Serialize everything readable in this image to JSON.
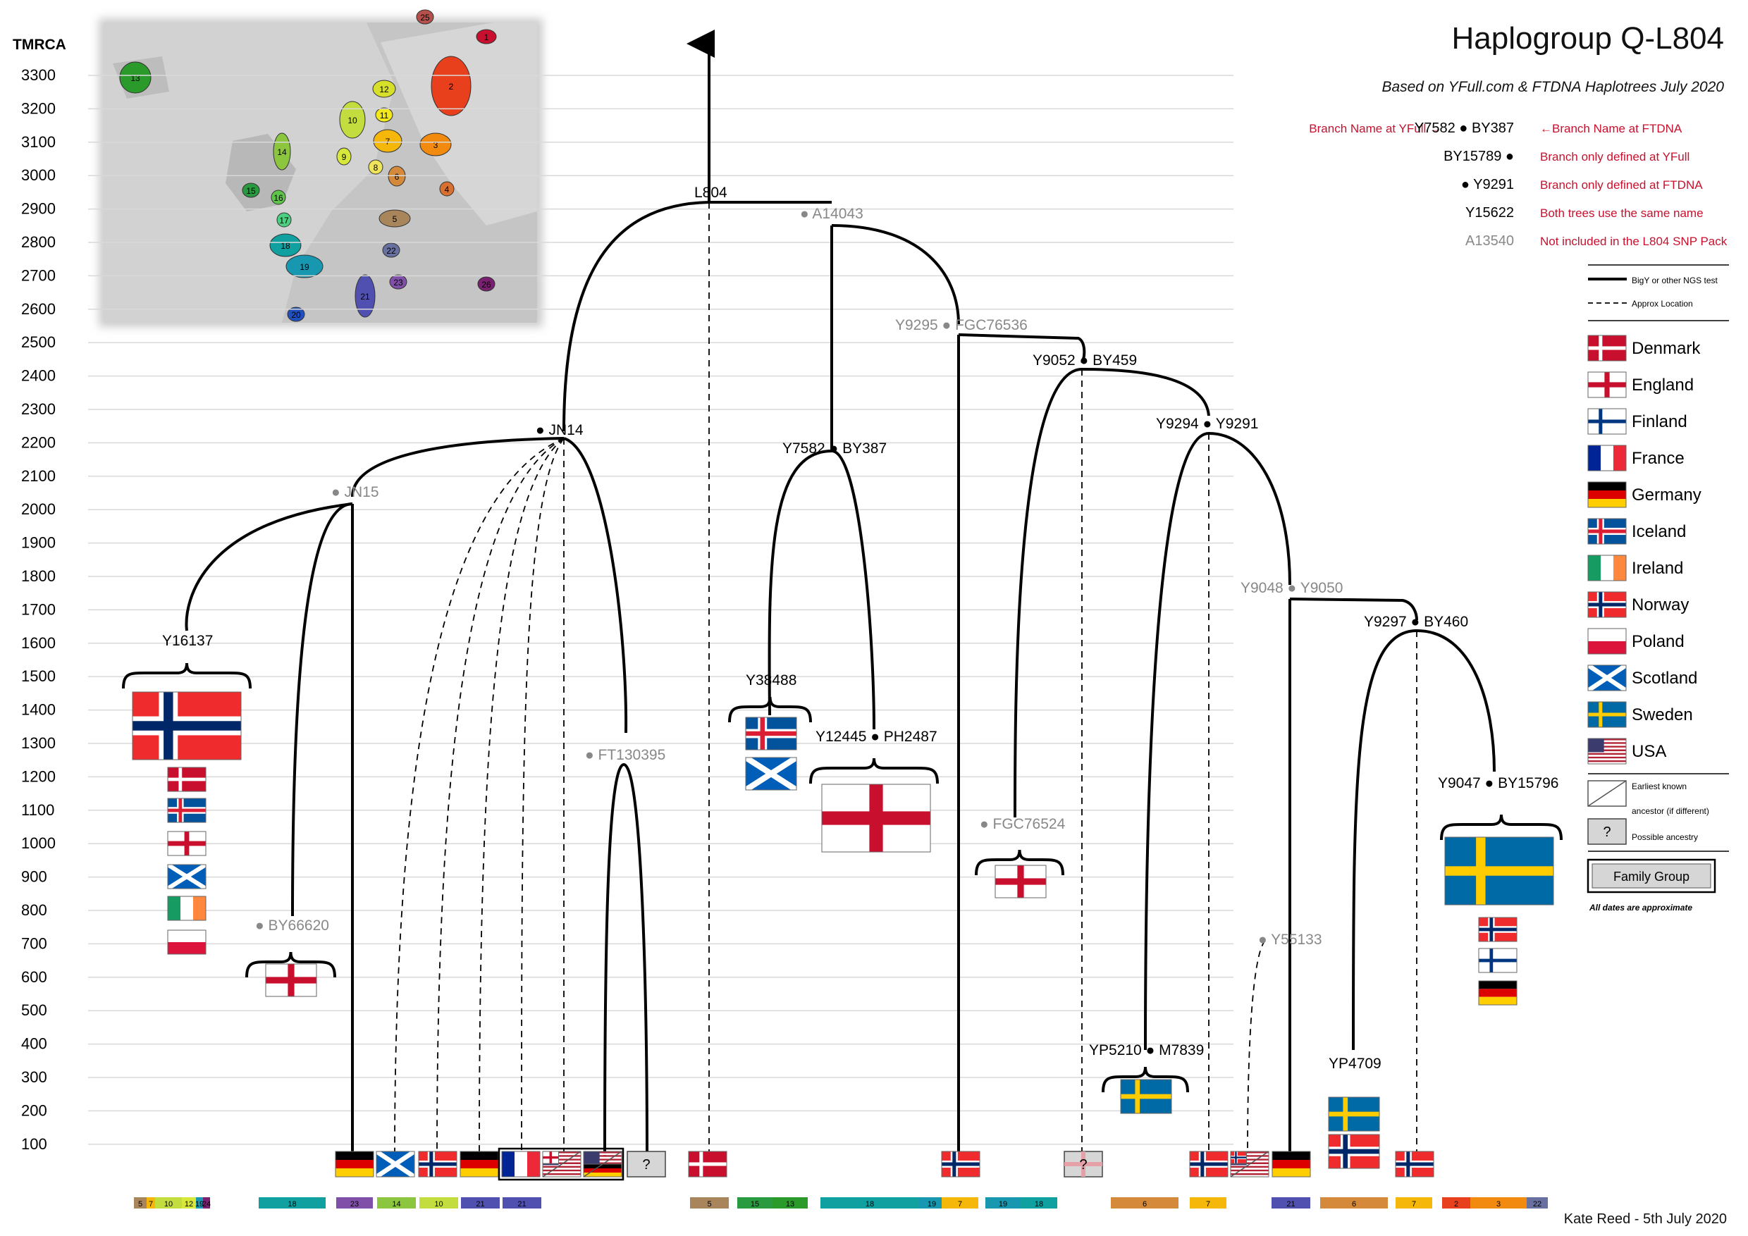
{
  "title": "Haplogroup Q-L804",
  "subtitle": "Based on YFull.com & FTDNA Haplotrees July 2020",
  "credit": "Kate Reed - 5th July 2020",
  "axis": {
    "label": "TMRCA",
    "ticks": [
      "3300",
      "3200",
      "3100",
      "3000",
      "2900",
      "2800",
      "2700",
      "2600",
      "2500",
      "2400",
      "2300",
      "2200",
      "2100",
      "2000",
      "1900",
      "1800",
      "1700",
      "1600",
      "1500",
      "1400",
      "1300",
      "1200",
      "1100",
      "1000",
      "900",
      "800",
      "700",
      "600",
      "500",
      "400",
      "300",
      "200",
      "100"
    ]
  },
  "key": {
    "rows": [
      {
        "left": "Branch Name at YFull →",
        "node": "Y7582 ● BY387",
        "right": "←Branch Name at FTDNA"
      },
      {
        "left": "",
        "node": "BY15789 ●",
        "right": "Branch only defined at YFull"
      },
      {
        "left": "",
        "node": "● Y9291",
        "right": "Branch only defined at FTDNA"
      },
      {
        "left": "",
        "node": "Y15622",
        "right": "Both trees use the same name"
      },
      {
        "left": "",
        "node": "A13540",
        "right": "Not included in the L804 SNP Pack"
      }
    ],
    "line_solid": "BigY or other NGS test",
    "line_dashed": "Approx Location"
  },
  "legend": {
    "countries": [
      "Denmark",
      "England",
      "Finland",
      "France",
      "Germany",
      "Iceland",
      "Ireland",
      "Norway",
      "Poland",
      "Scotland",
      "Sweden",
      "USA"
    ],
    "earliest_1": "Earliest known",
    "earliest_2": "ancestor (if different)",
    "possible": "Possible ancestry",
    "family_group": "Family Group",
    "dates_note": "All dates are approximate"
  },
  "nodes": {
    "l804": "L804",
    "a14043": "● A14043",
    "fgc76536": "Y9295 ● FGC76536",
    "y9052": "Y9052 ● BY459",
    "y9294": "Y9294 ● Y9291",
    "jn14": "● JN14",
    "jn15": "● JN15",
    "y7582": "Y7582 ● BY387",
    "y9048": "Y9048 ● Y9050",
    "y9297": "Y9297 ● BY460",
    "y16137": "Y16137",
    "y38488": "Y38488",
    "y12445": "Y12445 ● PH2487",
    "ft130395": "● FT130395",
    "y9047": "Y9047 ● BY15796",
    "fgc76524": "● FGC76524",
    "by66620": "● BY66620",
    "y55133": "● Y55133",
    "yp5210": "YP5210 ● M7839",
    "yp4709": "YP4709"
  },
  "map_regions": [
    "25",
    "1",
    "13",
    "2",
    "12",
    "11",
    "10",
    "7",
    "3",
    "14",
    "9",
    "8",
    "6",
    "4",
    "15",
    "16",
    "17",
    "5",
    "18",
    "22",
    "19",
    "23",
    "26",
    "21",
    "20"
  ],
  "bottom_bars": [
    "5",
    "7",
    "10",
    "12",
    "19",
    "24",
    "18",
    "23",
    "14",
    "10",
    "21",
    "21",
    "5",
    "15",
    "13",
    "18",
    "19",
    "7",
    "19",
    "18",
    "6",
    "7",
    "21",
    "6",
    "7",
    "2",
    "3",
    "22"
  ],
  "unknown_mark": "?",
  "colors": {
    "red": "#C8102E",
    "gray_label": "#888888",
    "sweden_blue": "#006AA7",
    "sweden_yellow": "#FECC00"
  }
}
